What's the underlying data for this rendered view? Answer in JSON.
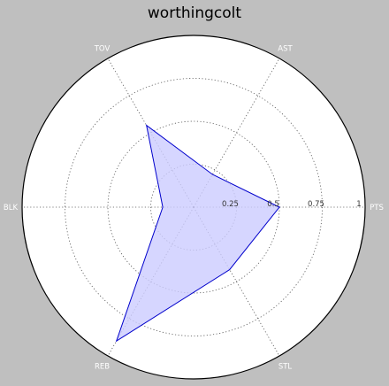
{
  "chart_data": {
    "type": "radar",
    "title": "worthingcolt",
    "categories": [
      "PTS",
      "AST",
      "TOV",
      "BLK",
      "REB",
      "STL"
    ],
    "series": [
      {
        "values": [
          0.5,
          0.22,
          0.55,
          0.18,
          0.9,
          0.42
        ]
      }
    ],
    "rlim": [
      0,
      1
    ],
    "r_ticks": [
      0.25,
      0.5,
      0.75,
      1
    ],
    "r_tick_labels": [
      "0.25",
      "0.5",
      "0.75",
      "1"
    ],
    "grid": true,
    "colors": {
      "background": "#bfbfbf",
      "plot_bg": "#ffffff",
      "line": "#0000cc",
      "fill": "#ccccff"
    }
  }
}
